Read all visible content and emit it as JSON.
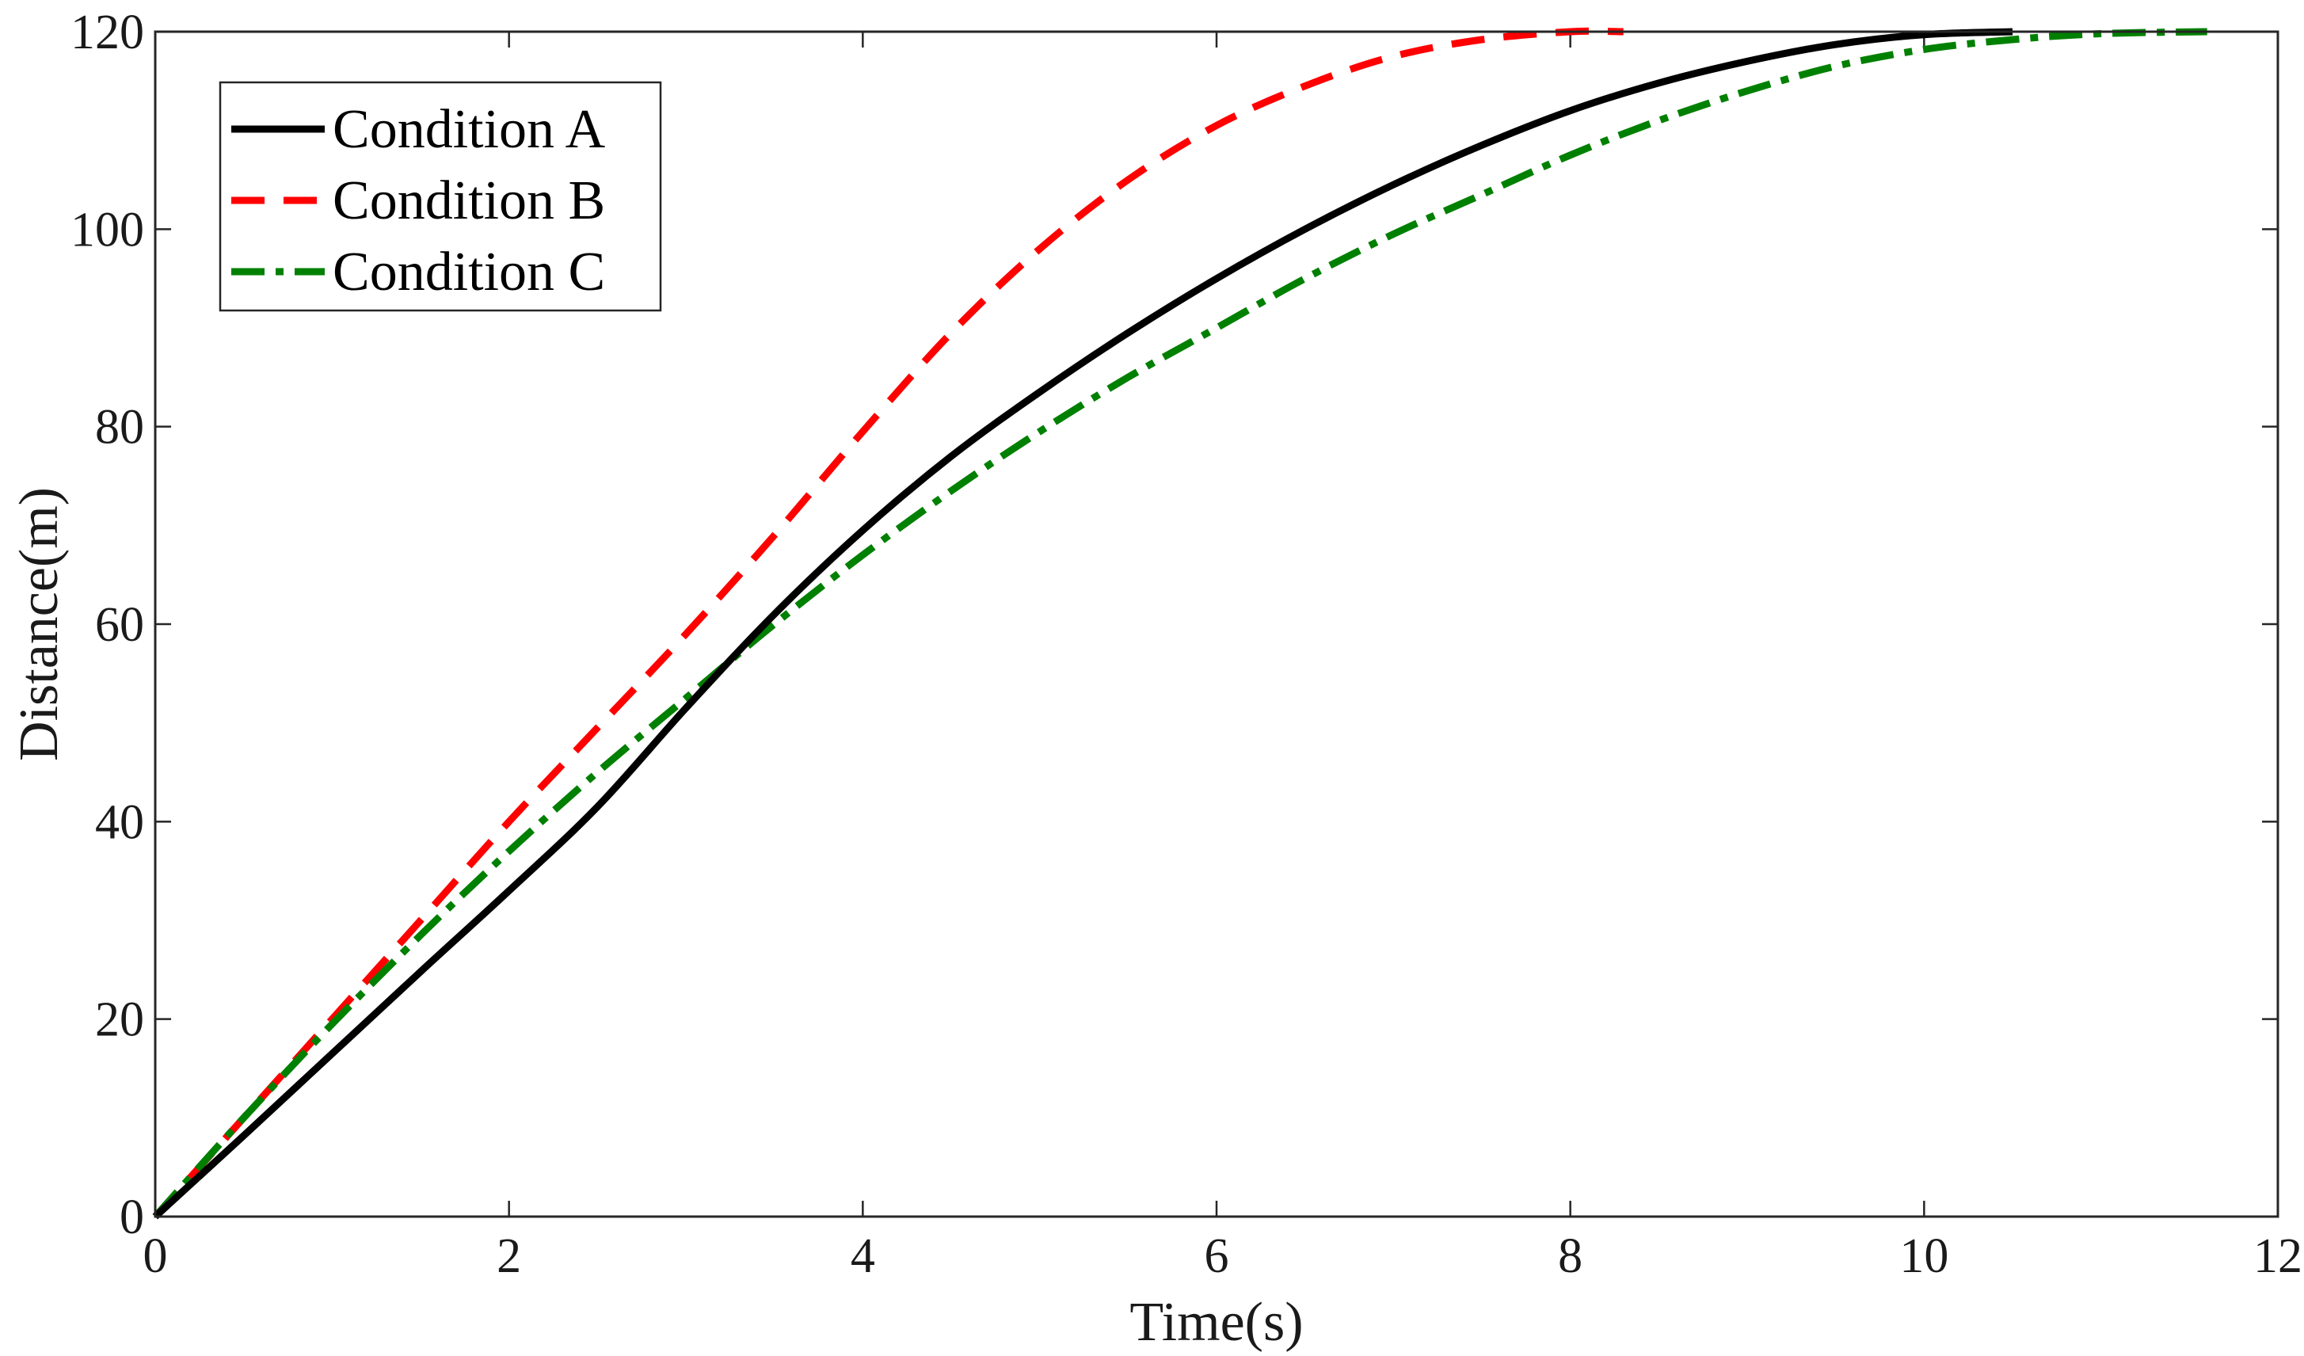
{
  "chart_data": {
    "type": "line",
    "title": "",
    "xlabel": "Time(s)",
    "ylabel": "Distance(m)",
    "xlim": [
      0,
      12
    ],
    "ylim": [
      0,
      120
    ],
    "xticks": [
      0,
      2,
      4,
      6,
      8,
      10,
      12
    ],
    "yticks": [
      0,
      20,
      40,
      60,
      80,
      100,
      120
    ],
    "grid": false,
    "legend_position": "top-left",
    "series": [
      {
        "name": "Condition A",
        "color": "#000000",
        "style": "solid",
        "x": [
          0,
          0.5,
          1,
          1.5,
          2,
          2.5,
          3,
          3.5,
          4,
          4.5,
          5,
          5.5,
          6,
          6.5,
          7,
          7.5,
          8,
          8.5,
          9,
          9.5,
          10,
          10.5
        ],
        "y": [
          0,
          8.2,
          16.5,
          24.8,
          33,
          41.5,
          51.5,
          61,
          69.5,
          77,
          83.5,
          89.5,
          95,
          100,
          104.5,
          108.5,
          112,
          114.8,
          117,
          118.7,
          119.7,
          120
        ]
      },
      {
        "name": "Condition B",
        "color": "#ff0000",
        "style": "dashed",
        "x": [
          0,
          0.5,
          1,
          1.5,
          2,
          2.5,
          3,
          3.5,
          4,
          4.5,
          5,
          5.5,
          6,
          6.5,
          7,
          7.5,
          8,
          8.3
        ],
        "y": [
          0,
          10,
          20,
          30,
          40,
          49.5,
          59,
          69,
          79.5,
          89.5,
          98,
          105,
          110.5,
          114.5,
          117.5,
          119.2,
          120,
          120
        ]
      },
      {
        "name": "Condition C",
        "color": "#008000",
        "style": "dash-dot",
        "x": [
          0,
          0.5,
          1,
          1.5,
          2,
          2.5,
          3,
          3.5,
          4,
          4.5,
          5,
          5.5,
          6,
          6.5,
          7,
          7.5,
          8,
          8.5,
          9,
          9.5,
          10,
          10.5,
          11,
          11.6
        ],
        "y": [
          0,
          10,
          19.5,
          28.5,
          37,
          45,
          52.5,
          60,
          67,
          73.5,
          79.5,
          85,
          90,
          95,
          99.5,
          103.5,
          107.5,
          111,
          114,
          116.5,
          118.2,
          119.2,
          119.8,
          120
        ]
      }
    ]
  }
}
